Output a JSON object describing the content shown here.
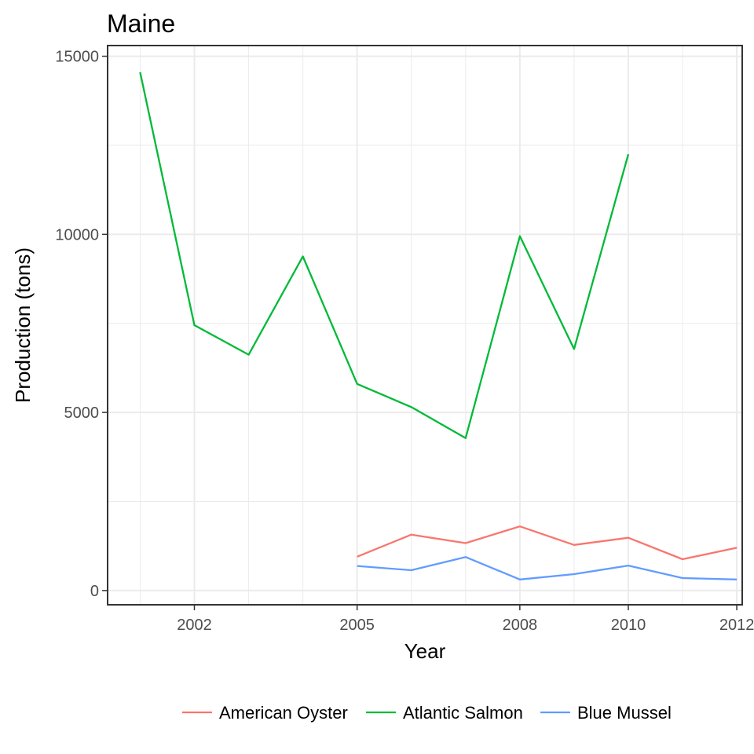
{
  "chart_data": {
    "type": "line",
    "title": "Maine",
    "xlabel": "Year",
    "ylabel": "Production (tons)",
    "xlim": [
      2000.4,
      2012.1
    ],
    "ylim": [
      -400,
      15300
    ],
    "x_ticks": [
      2002,
      2005,
      2008,
      2010,
      2012
    ],
    "x_tick_labels": [
      "2002",
      "2005",
      "2008",
      "2010",
      "2012"
    ],
    "x_minor_ticks": [
      2001,
      2003,
      2004,
      2006,
      2007,
      2009,
      2011
    ],
    "y_ticks": [
      0,
      5000,
      10000,
      15000
    ],
    "y_tick_labels": [
      "0",
      "5000",
      "10000",
      "15000"
    ],
    "y_minor_ticks": [
      2500,
      7500,
      12500
    ],
    "grid": true,
    "legend_position": "bottom",
    "series": [
      {
        "name": "American Oyster",
        "color": "#F8766D",
        "x": [
          2005,
          2006,
          2007,
          2008,
          2009,
          2010,
          2011,
          2012
        ],
        "y": [
          950,
          1570,
          1330,
          1800,
          1280,
          1480,
          880,
          1200
        ]
      },
      {
        "name": "Atlantic Salmon",
        "color": "#00BA38",
        "x": [
          2001,
          2002,
          2003,
          2004,
          2005,
          2006,
          2007,
          2008,
          2009,
          2010
        ],
        "y": [
          14550,
          7450,
          6620,
          9380,
          5800,
          5150,
          4280,
          9950,
          6780,
          12250
        ]
      },
      {
        "name": "Blue Mussel",
        "color": "#619CFF",
        "x": [
          2005,
          2006,
          2007,
          2008,
          2009,
          2010,
          2011,
          2012
        ],
        "y": [
          690,
          570,
          940,
          310,
          460,
          700,
          350,
          310
        ]
      }
    ]
  }
}
